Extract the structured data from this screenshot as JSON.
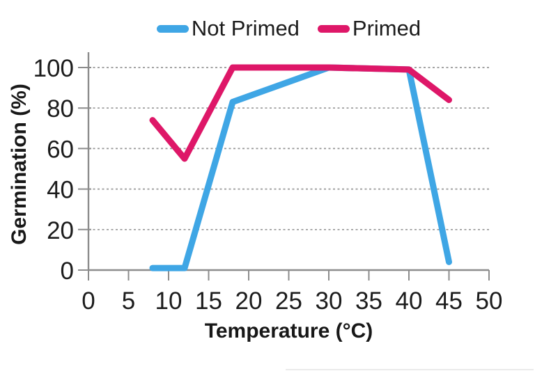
{
  "chart_data": {
    "type": "line",
    "title": "",
    "xlabel": "Temperature (°C)",
    "ylabel": "Germination (%)",
    "x": [
      8,
      12,
      18,
      30,
      40,
      45
    ],
    "series": [
      {
        "name": "Not Primed",
        "color": "#3FA6E5",
        "values": [
          1,
          1,
          83,
          100,
          99,
          4
        ]
      },
      {
        "name": "Primed",
        "color": "#DE1768",
        "values": [
          74,
          55,
          100,
          100,
          99,
          84
        ]
      }
    ],
    "xticks": [
      0,
      5,
      10,
      15,
      20,
      25,
      30,
      35,
      40,
      45,
      50
    ],
    "yticks": [
      0,
      20,
      40,
      60,
      80,
      100
    ],
    "xlim": [
      0,
      50
    ],
    "ylim": [
      0,
      100
    ],
    "grid": "horizontal-dashed",
    "legend_position": "top-center",
    "colors": {
      "axis": "#8c8c8c",
      "gridline": "#969696",
      "text": "#1c1c1c",
      "background": "#ffffff"
    }
  }
}
